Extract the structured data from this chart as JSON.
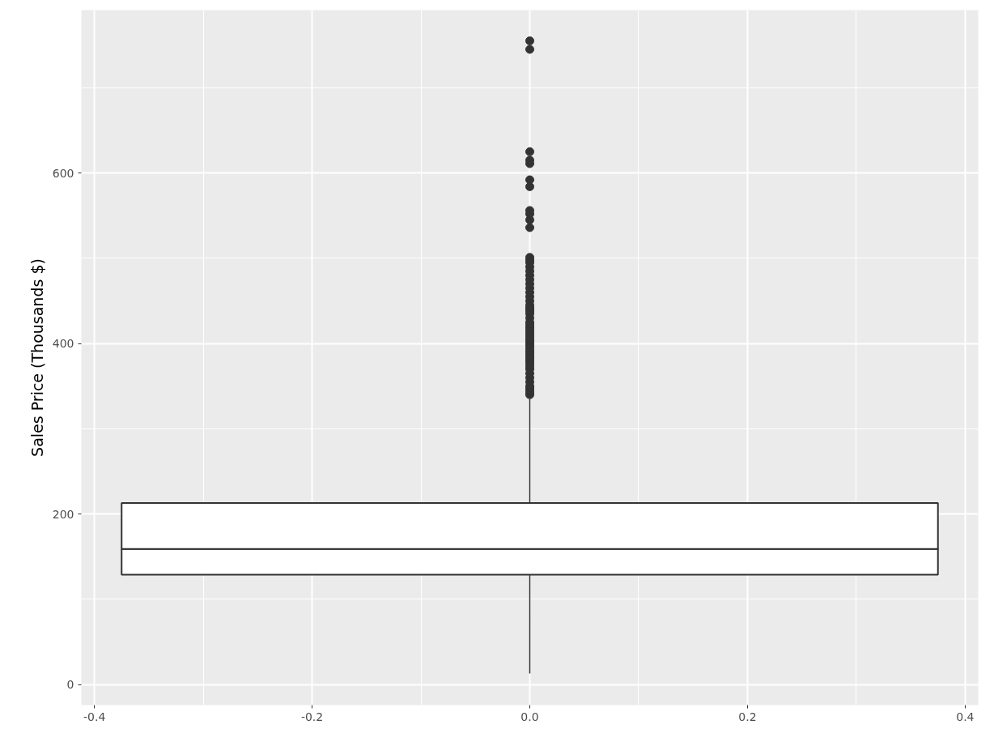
{
  "chart_data": {
    "type": "box",
    "ylabel": "Sales Price (Thousands $)",
    "categories": [
      null
    ],
    "boxes": [
      {
        "low": 13,
        "q1": 129,
        "median": 159,
        "q3": 213,
        "high": 335,
        "outliers": [
          340,
          342,
          345,
          348,
          350,
          355,
          360,
          365,
          370,
          372,
          375,
          378,
          380,
          383,
          385,
          388,
          390,
          392,
          395,
          398,
          400,
          403,
          405,
          408,
          410,
          413,
          415,
          418,
          420,
          423,
          425,
          430,
          435,
          438,
          440,
          442,
          445,
          450,
          455,
          460,
          465,
          470,
          475,
          480,
          485,
          490,
          495,
          498,
          501,
          536,
          545,
          552,
          556,
          584,
          592,
          611,
          615,
          625,
          745,
          755
        ]
      }
    ],
    "annotations": [
      "-0.4",
      "-0.2",
      "0.0",
      "0.2",
      "0.4"
    ],
    "ylim": [
      -24,
      791
    ],
    "yticks": [
      0,
      200,
      400,
      600
    ],
    "grid": true
  }
}
